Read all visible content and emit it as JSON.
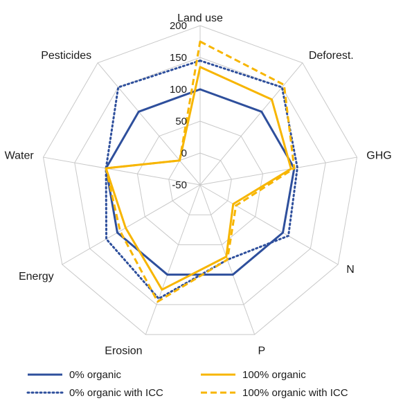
{
  "chart_data": {
    "type": "radar",
    "axes": [
      "Land use",
      "Deforest.",
      "GHG",
      "N",
      "P",
      "Erosion",
      "Energy",
      "Water",
      "Pesticides"
    ],
    "rlim": [
      -50,
      200
    ],
    "ticks": [
      -50,
      0,
      50,
      100,
      150,
      200
    ],
    "grid": true,
    "legend_position": "bottom",
    "series": [
      {
        "name": "0% organic",
        "values": [
          100,
          100,
          100,
          100,
          100,
          100,
          100,
          100,
          100
        ],
        "color": "#2e4f9c",
        "style": "solid"
      },
      {
        "name": "100% organic",
        "values": [
          135,
          125,
          95,
          10,
          70,
          125,
          85,
          100,
          0
        ],
        "color": "#f7b500",
        "style": "solid"
      },
      {
        "name": "0% organic with ICC",
        "values": [
          145,
          150,
          105,
          110,
          75,
          140,
          120,
          100,
          150
        ],
        "color": "#2e4f9c",
        "style": "dotted"
      },
      {
        "name": "100% organic with ICC",
        "values": [
          175,
          155,
          100,
          15,
          75,
          145,
          95,
          100,
          0
        ],
        "color": "#f7b500",
        "style": "dashed"
      }
    ]
  }
}
